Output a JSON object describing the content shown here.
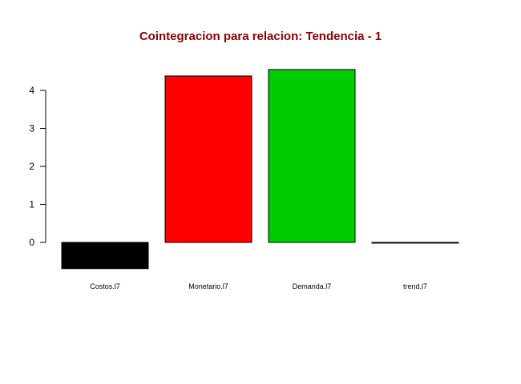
{
  "chart_data": {
    "type": "bar",
    "title": "Cointegracion para relacion: Tendencia - 1",
    "title_color": "#8B0000",
    "xlabel": "",
    "ylabel": "",
    "categories": [
      "Costos.l7",
      "Monetario.l7",
      "Demanda.l7",
      "trend.l7"
    ],
    "values": [
      -0.69,
      4.38,
      4.55,
      -0.02
    ],
    "colors": [
      "#000000",
      "#FF0000",
      "#00CD00",
      "#0000FF"
    ],
    "yticks": [
      0,
      1,
      2,
      3,
      4
    ],
    "ylim": [
      -0.69,
      4.55
    ],
    "grid": false,
    "legend": "none"
  }
}
